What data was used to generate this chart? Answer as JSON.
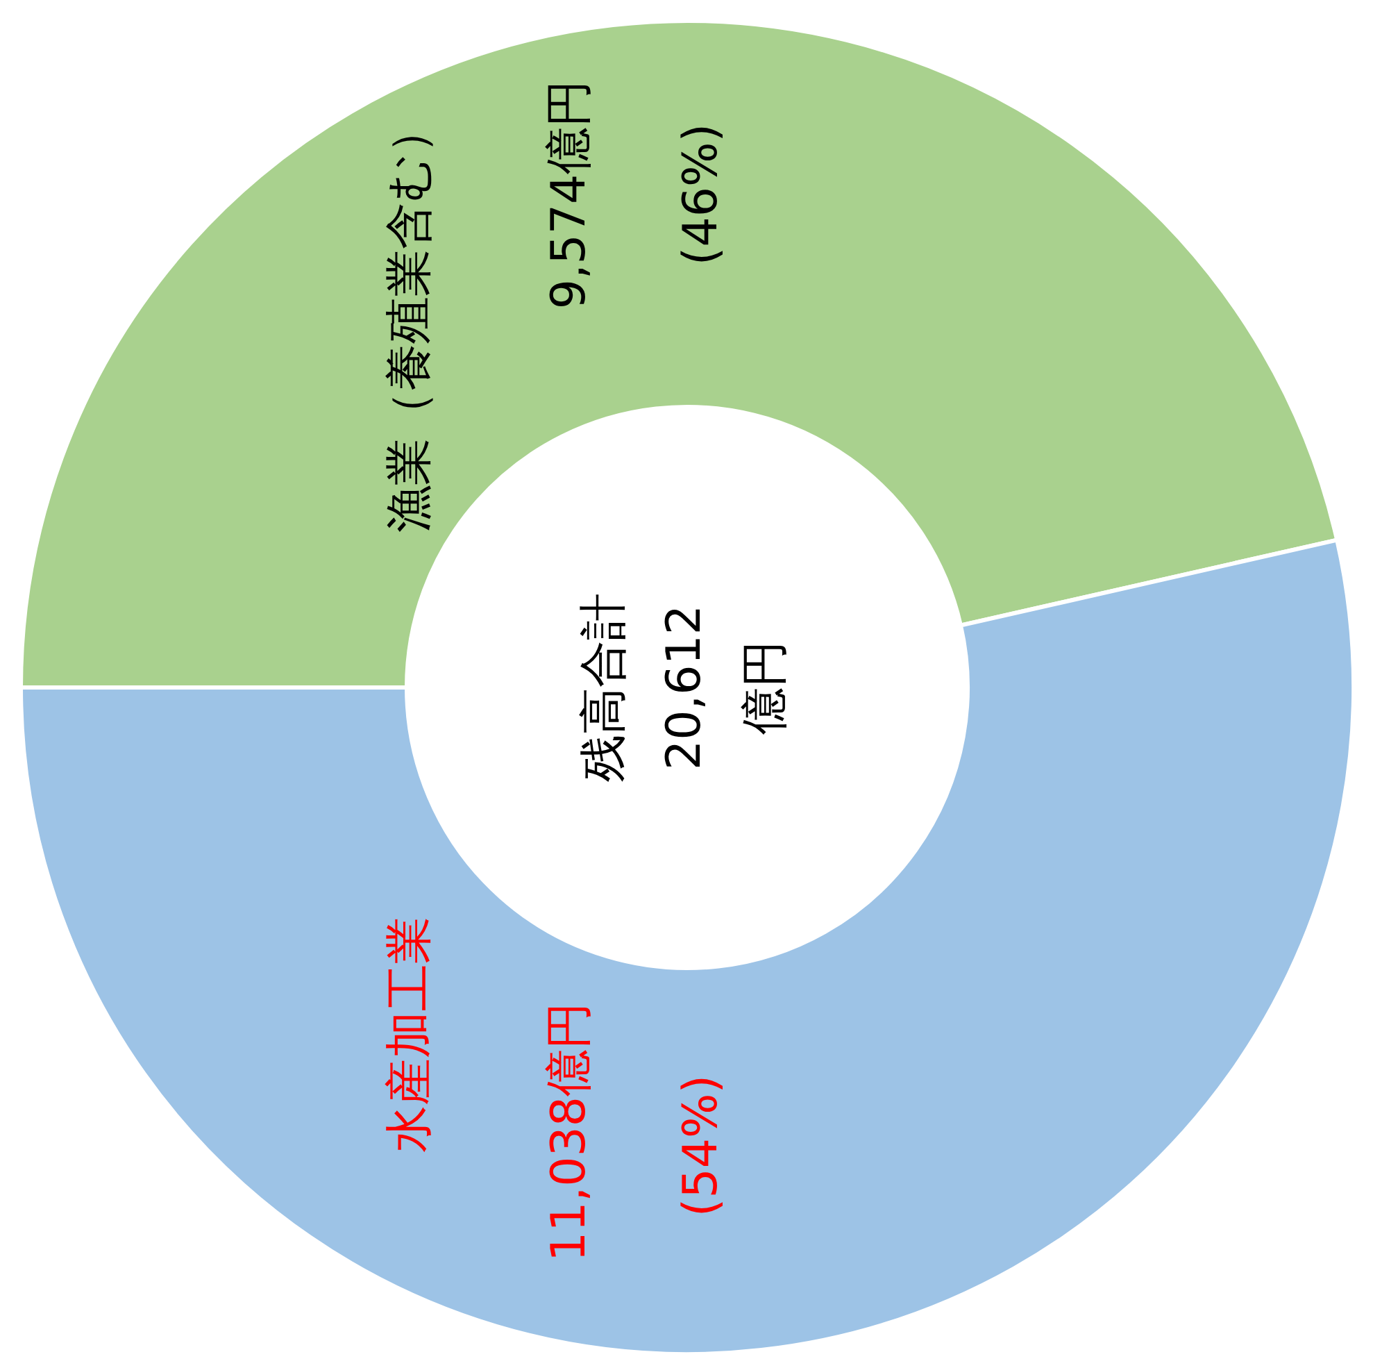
{
  "chart_data": {
    "type": "donut",
    "title": "残高合計\n20,612\n億円",
    "categories": [
      "漁業（養殖業含む）",
      "水産加工業"
    ],
    "values": [
      9574,
      11038
    ],
    "colors": [
      "#a9d18e",
      "#9dc3e6"
    ],
    "value_labels": [
      "9,574億円",
      "11,038億円"
    ],
    "annotations": [
      "(46%)",
      "(54%)"
    ]
  }
}
